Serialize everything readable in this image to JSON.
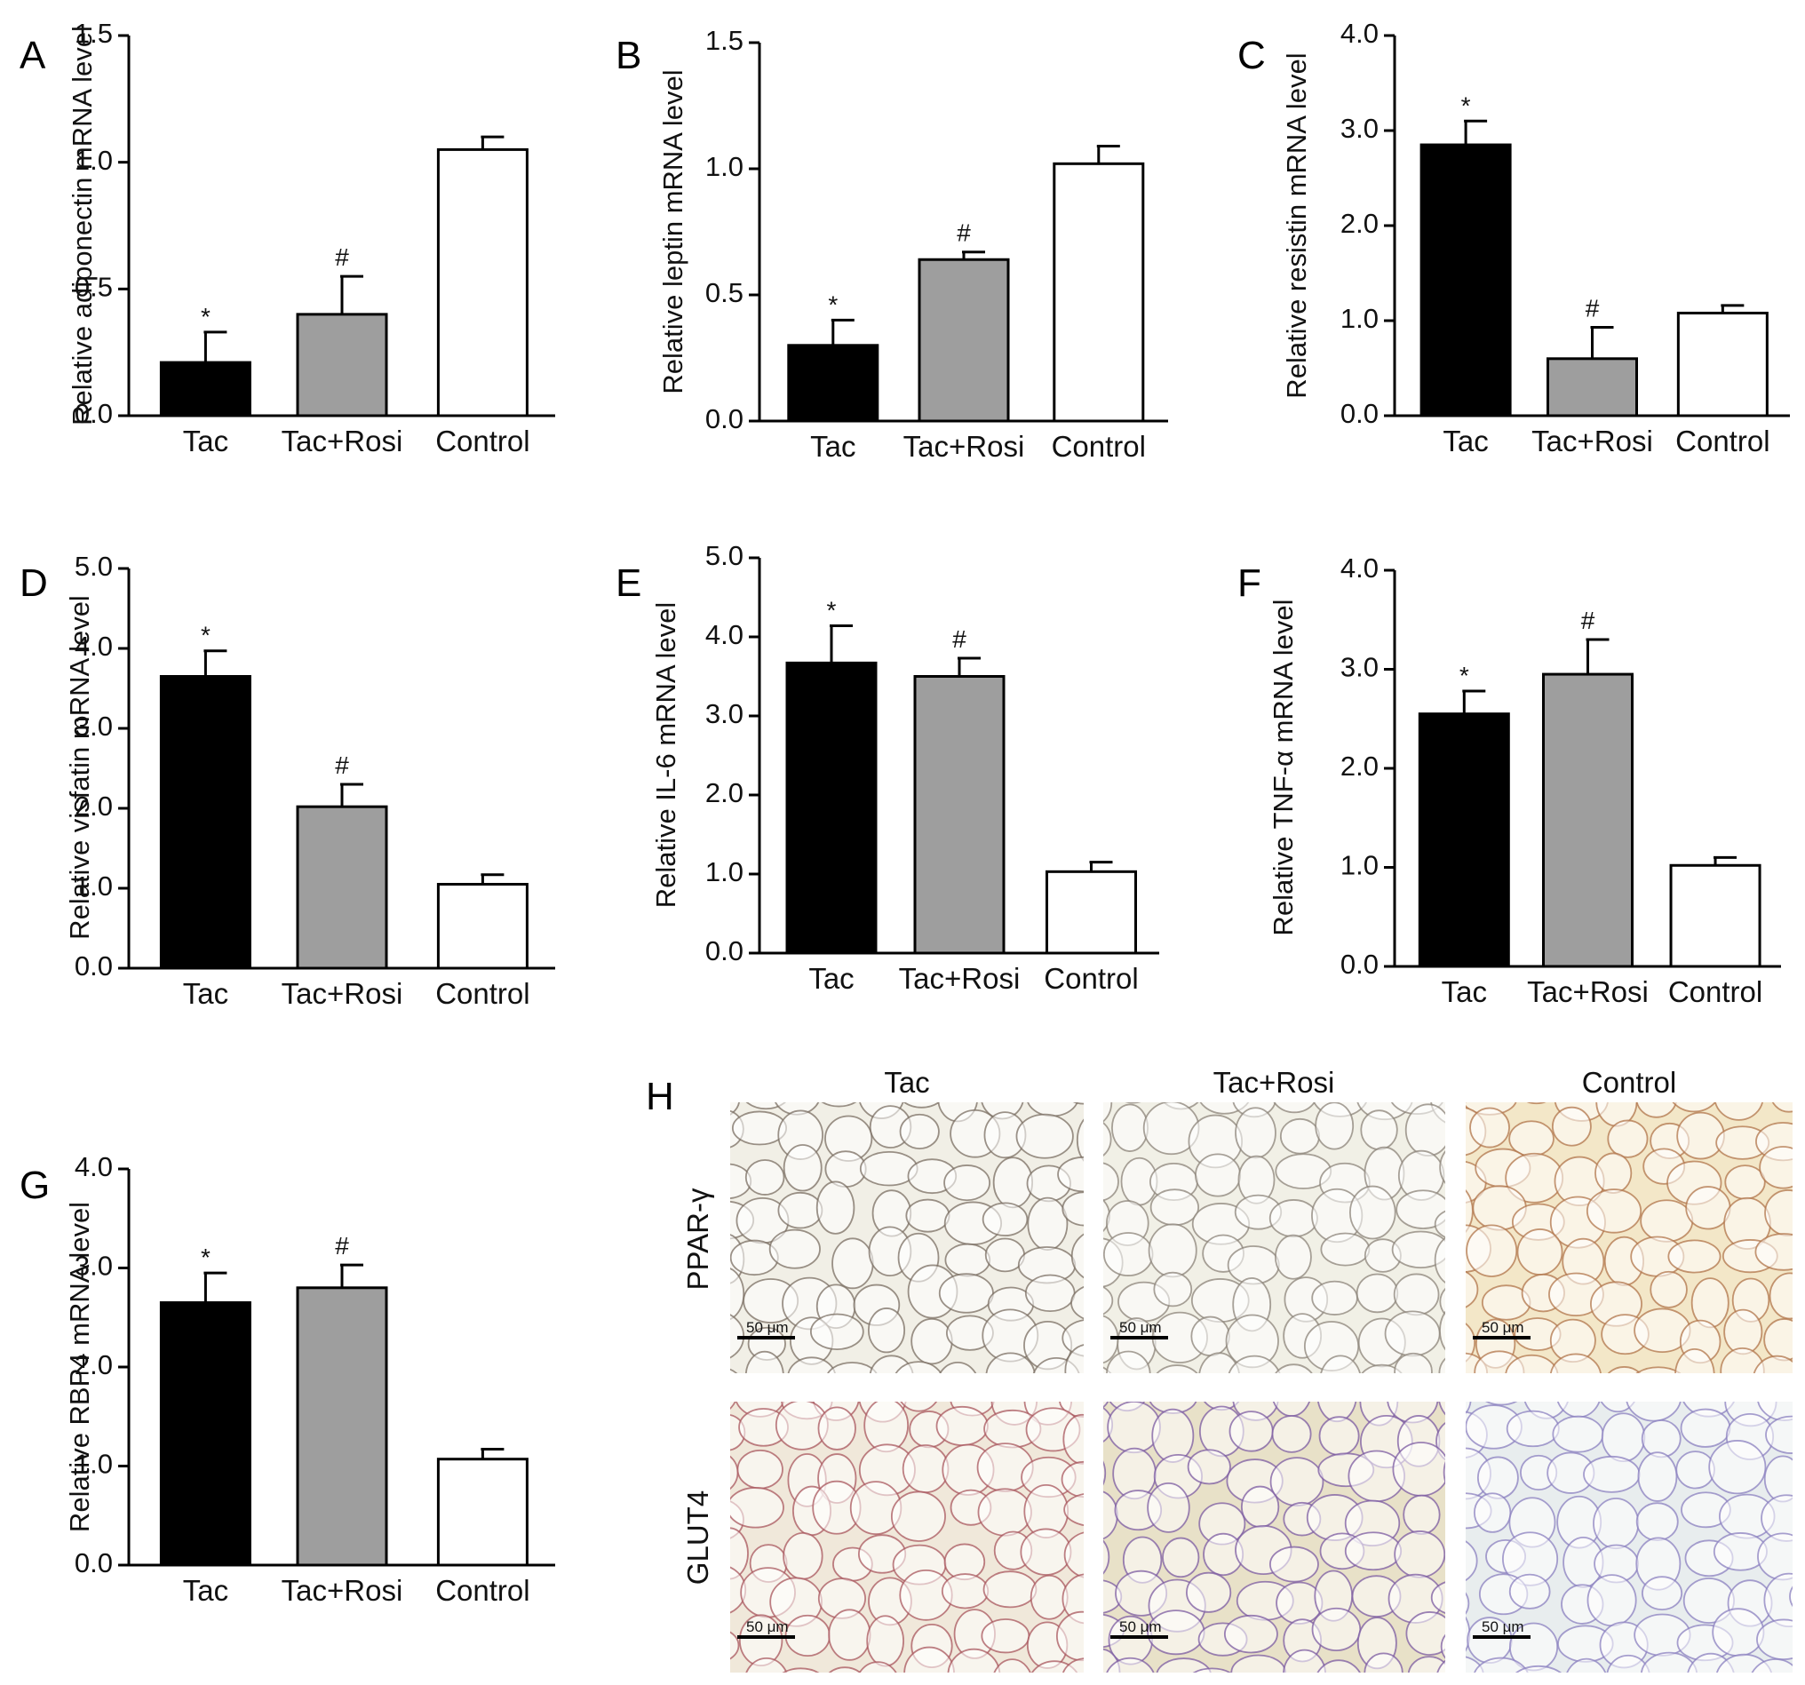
{
  "colors": {
    "Tac": "#000000",
    "Tac+Rosi": "#9e9e9e",
    "Control": "#ffffff",
    "axis": "#000000"
  },
  "chart_data": [
    {
      "panel": "A",
      "type": "bar",
      "ylabel": "Relative adiponectin mRNA level",
      "categories": [
        "Tac",
        "Tac+Rosi",
        "Control"
      ],
      "values": [
        0.21,
        0.4,
        1.05
      ],
      "errors": [
        0.12,
        0.15,
        0.05
      ],
      "significance": [
        "*",
        "#",
        ""
      ],
      "ylim": [
        0,
        1.5
      ],
      "yticks": [
        "0.0",
        "0.5",
        "1.0",
        "1.5"
      ]
    },
    {
      "panel": "B",
      "type": "bar",
      "ylabel": "Relative leptin mRNA level",
      "categories": [
        "Tac",
        "Tac+Rosi",
        "Control"
      ],
      "values": [
        0.3,
        0.64,
        1.02
      ],
      "errors": [
        0.1,
        0.03,
        0.07
      ],
      "significance": [
        "*",
        "#",
        ""
      ],
      "ylim": [
        0,
        1.5
      ],
      "yticks": [
        "0.0",
        "0.5",
        "1.0",
        "1.5"
      ]
    },
    {
      "panel": "C",
      "type": "bar",
      "ylabel": "Relative resistin mRNA level",
      "categories": [
        "Tac",
        "Tac+Rosi",
        "Control"
      ],
      "values": [
        2.85,
        0.6,
        1.08
      ],
      "errors": [
        0.25,
        0.33,
        0.08
      ],
      "significance": [
        "*",
        "#",
        ""
      ],
      "ylim": [
        0,
        4
      ],
      "yticks": [
        "0.0",
        "1.0",
        "2.0",
        "3.0",
        "4.0"
      ]
    },
    {
      "panel": "D",
      "type": "bar",
      "ylabel": "Relative visfatin mRNA level",
      "categories": [
        "Tac",
        "Tac+Rosi",
        "Control"
      ],
      "values": [
        3.65,
        2.02,
        1.05
      ],
      "errors": [
        0.32,
        0.28,
        0.12
      ],
      "significance": [
        "*",
        "#",
        ""
      ],
      "ylim": [
        0,
        5
      ],
      "yticks": [
        "0.0",
        "1.0",
        "2.0",
        "3.0",
        "4.0",
        "5.0"
      ]
    },
    {
      "panel": "E",
      "type": "bar",
      "ylabel": "Relative IL-6 mRNA level",
      "categories": [
        "Tac",
        "Tac+Rosi",
        "Control"
      ],
      "values": [
        3.67,
        3.5,
        1.03
      ],
      "errors": [
        0.47,
        0.23,
        0.12
      ],
      "significance": [
        "*",
        "#",
        ""
      ],
      "ylim": [
        0,
        5
      ],
      "yticks": [
        "0.0",
        "1.0",
        "2.0",
        "3.0",
        "4.0",
        "5.0"
      ]
    },
    {
      "panel": "F",
      "type": "bar",
      "ylabel": "Relative TNF-α mRNA level",
      "categories": [
        "Tac",
        "Tac+Rosi",
        "Control"
      ],
      "values": [
        2.55,
        2.95,
        1.02
      ],
      "errors": [
        0.23,
        0.35,
        0.08
      ],
      "significance": [
        "*",
        "#",
        ""
      ],
      "ylim": [
        0,
        4
      ],
      "yticks": [
        "0.0",
        "1.0",
        "2.0",
        "3.0",
        "4.0"
      ]
    },
    {
      "panel": "G",
      "type": "bar",
      "ylabel": "Relative RBP4 mRNA level",
      "categories": [
        "Tac",
        "Tac+Rosi",
        "Control"
      ],
      "values": [
        2.65,
        2.8,
        1.07
      ],
      "errors": [
        0.3,
        0.23,
        0.1
      ],
      "significance": [
        "*",
        "#",
        ""
      ],
      "ylim": [
        0,
        4
      ],
      "yticks": [
        "0.0",
        "1.0",
        "2.0",
        "3.0",
        "4.0"
      ]
    }
  ],
  "histology": {
    "panel": "H",
    "columns": [
      "Tac",
      "Tac+Rosi",
      "Control"
    ],
    "rows": [
      "PPAR-γ",
      "GLUT4"
    ],
    "scale_bar": "50 μm",
    "tints": [
      [
        "#f1efe6",
        "#f1f0e6",
        "#f3e7c8"
      ],
      [
        "#f0e8da",
        "#e8e1c8",
        "#e8edee"
      ]
    ],
    "membrane_colors": [
      [
        "#7a6e62",
        "#8b8378",
        "#b0744a"
      ],
      [
        "#a8555c",
        "#7b5aa0",
        "#8a7fbf"
      ]
    ]
  }
}
